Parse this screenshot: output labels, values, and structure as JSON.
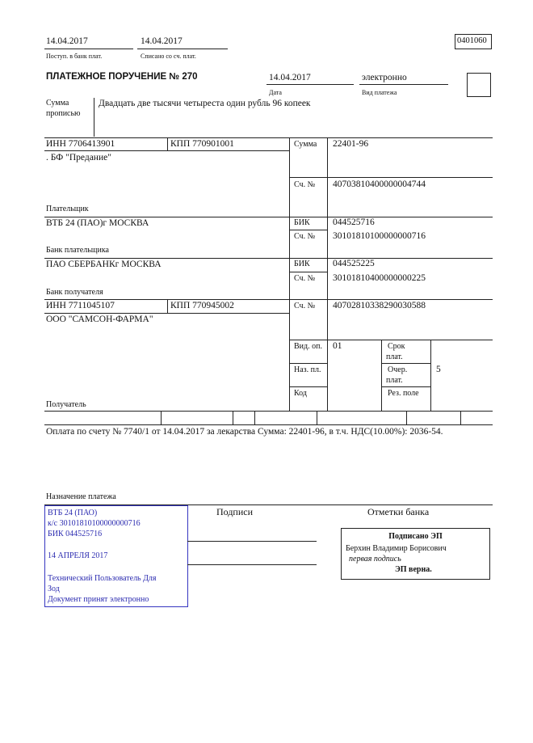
{
  "header": {
    "received_date": "14.04.2017",
    "received_label": "Поступ. в банк плат.",
    "debited_date": "14.04.2017",
    "debited_label": "Списано со сч. плат.",
    "form_code": "0401060"
  },
  "title": "ПЛАТЕЖНОЕ ПОРУЧЕНИЕ № 270",
  "date": {
    "value": "14.04.2017",
    "label": "Дата"
  },
  "payment_type": {
    "value": "электронно",
    "label": "Вид платежа"
  },
  "amount_words": {
    "label_line1": "Сумма",
    "label_line2": "прописью",
    "value": "Двадцать две тысячи четыреста один рубль 96 копеек"
  },
  "payer": {
    "inn": "ИНН 7706413901",
    "kpp": "КПП 770901001",
    "name": ". БФ \"Предание\"",
    "label": "Плательщик",
    "sum_label": "Сумма",
    "sum": "22401-96",
    "account_label": "Сч. №",
    "account": "40703810400000004744"
  },
  "payer_bank": {
    "name": "ВТБ 24 (ПАО)г МОСКВА",
    "label": "Банк плательщика",
    "bik_label": "БИК",
    "bik": "044525716",
    "account_label": "Сч. №",
    "account": "30101810100000000716"
  },
  "recipient_bank": {
    "name": "ПАО СБЕРБАНКг МОСКВА",
    "label": "Банк получателя",
    "bik_label": "БИК",
    "bik": "044525225",
    "account_label": "Сч. №",
    "account": "30101810400000000225"
  },
  "recipient": {
    "inn": "ИНН 7711045107",
    "kpp": "КПП 770945002",
    "name": "ООО \"САМСОН-ФАРМА\"",
    "label": "Получатель",
    "account_label": "Сч. №",
    "account": "40702810338290030588"
  },
  "codes": {
    "op_type_label": "Вид. оп.",
    "op_type": "01",
    "purpose_code_label": "Наз. пл.",
    "code_label": "Код",
    "term_label_1": "Срок",
    "term_label_2": "плат.",
    "order_label_1": "Очер.",
    "order_label_2": "плат.",
    "order": "5",
    "reserve_label": "Рез. поле"
  },
  "purpose": {
    "text": "Оплата по счету № 7740/1 от 14.04.2017 за лекарства Сумма: 22401-96, в т.ч. НДС(10.00%): 2036-54.",
    "label": "Назначение платежа"
  },
  "bank_stamp": {
    "lines": [
      "ВТБ 24 (ПАО)",
      "к/с 30101810100000000716",
      "БИК 044525716",
      "14 АПРЕЛЯ 2017",
      "Технический Пользователь Для",
      "Зод",
      "Документ принят электронно"
    ],
    "color": "#2b2bb0"
  },
  "signatures_label": "Подписи",
  "bank_marks_label": "Отметки банка",
  "e_signature": {
    "title": "Подписано ЭП",
    "signer": "Берхин Владимир Борисович",
    "role": "первая подпись",
    "status": "ЭП верна."
  }
}
